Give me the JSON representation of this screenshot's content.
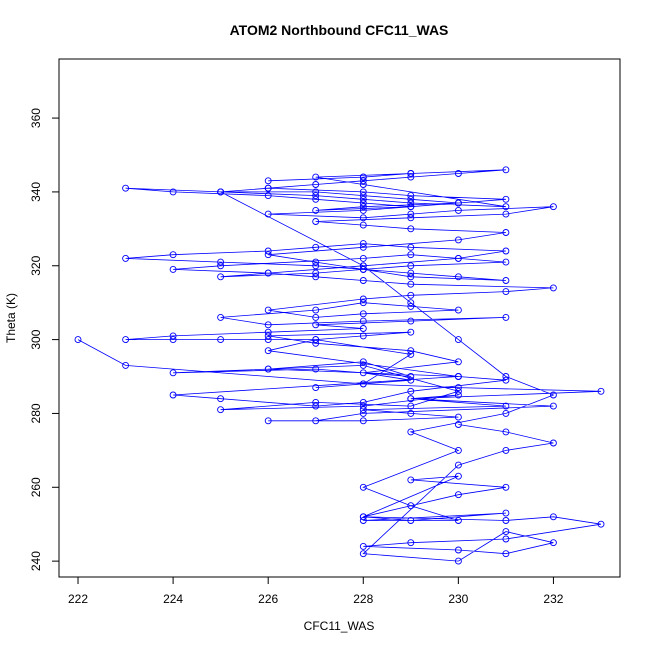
{
  "chart_data": {
    "type": "line",
    "title": "ATOM2 Northbound CFC11_WAS",
    "xlabel": "CFC11_WAS",
    "ylabel": "Theta (K)",
    "xlim": [
      221.6,
      233.4
    ],
    "ylim": [
      235.7,
      376.0
    ],
    "xticks": [
      222,
      224,
      226,
      228,
      230,
      232
    ],
    "yticks": [
      240,
      260,
      280,
      300,
      320,
      340,
      360
    ],
    "grid": false,
    "markers": "open-circle",
    "line_color": "#0000ff",
    "series": [
      {
        "x": [
          222,
          223,
          228,
          229,
          227,
          226,
          230,
          224,
          225,
          227,
          228,
          229,
          231,
          230,
          226,
          228,
          229,
          227,
          224,
          226,
          228,
          230,
          229,
          227,
          225,
          228,
          230,
          229,
          232,
          228,
          227,
          226,
          228,
          230,
          229,
          228,
          231,
          229,
          233,
          230,
          228,
          227,
          229,
          228,
          230,
          229,
          227,
          226,
          229,
          228,
          227,
          226,
          225,
          224,
          223,
          224,
          226,
          228,
          227,
          229,
          231,
          228,
          226,
          225,
          227,
          228,
          229,
          230,
          228,
          227,
          226,
          228,
          229,
          231,
          232,
          229,
          228,
          227,
          226,
          224,
          225,
          228,
          229,
          230,
          231,
          229,
          228,
          227,
          225,
          226,
          228,
          230,
          231,
          229,
          228,
          227,
          226,
          224,
          223,
          225,
          227,
          228,
          229,
          230,
          231,
          229,
          228,
          227,
          226,
          228,
          230,
          231,
          229,
          228,
          227,
          229,
          231,
          232,
          230,
          229,
          228,
          226,
          228,
          229,
          230,
          229,
          228,
          227,
          225,
          226,
          228,
          229,
          231,
          230,
          228,
          227,
          229,
          228,
          227,
          226,
          224,
          223,
          225,
          227,
          228,
          229,
          231,
          228,
          227,
          229,
          228,
          226,
          228,
          229,
          231,
          230,
          229,
          228,
          227,
          226,
          225,
          228,
          229,
          230,
          231,
          232,
          231,
          229,
          230,
          228,
          229,
          230,
          228,
          231,
          229,
          228,
          230,
          231,
          229,
          230,
          228,
          231,
          232,
          233,
          231,
          229,
          228,
          230,
          231,
          232,
          231,
          230,
          228,
          230,
          231,
          232,
          231,
          230
        ],
        "y": [
          300,
          293,
          288,
          296,
          300,
          297,
          290,
          285,
          284,
          282,
          283,
          286,
          289,
          290,
          292,
          294,
          290,
          292,
          291,
          292,
          293,
          286,
          282,
          283,
          281,
          282,
          285,
          284,
          282,
          280,
          278,
          278,
          278,
          279,
          280,
          281,
          282,
          284,
          286,
          287,
          288,
          287,
          289,
          291,
          294,
          297,
          299,
          301,
          302,
          301,
          300,
          300,
          300,
          300,
          300,
          301,
          302,
          303,
          304,
          305,
          306,
          305,
          304,
          306,
          308,
          310,
          309,
          308,
          307,
          306,
          308,
          311,
          312,
          313,
          314,
          315,
          316,
          317,
          318,
          319,
          320,
          322,
          323,
          322,
          321,
          320,
          319,
          318,
          317,
          318,
          320,
          322,
          324,
          325,
          326,
          325,
          324,
          323,
          322,
          321,
          320,
          319,
          318,
          317,
          316,
          317,
          319,
          321,
          323,
          325,
          327,
          329,
          330,
          331,
          332,
          333,
          334,
          336,
          335,
          334,
          333,
          334,
          335,
          336,
          337,
          338,
          339,
          340,
          340,
          341,
          340,
          339,
          338,
          337,
          336,
          335,
          336,
          337,
          338,
          339,
          340,
          341,
          340,
          339,
          338,
          337,
          336,
          342,
          344,
          345,
          344,
          343,
          344,
          345,
          346,
          345,
          344,
          343,
          342,
          341,
          340,
          320,
          310,
          300,
          290,
          285,
          280,
          275,
          270,
          260,
          255,
          251,
          251,
          253,
          251,
          252,
          258,
          260,
          262,
          263,
          252,
          251,
          252,
          250,
          246,
          245,
          244,
          243,
          242,
          245,
          248,
          240,
          242,
          266,
          270,
          272,
          275,
          277
        ]
      }
    ]
  }
}
